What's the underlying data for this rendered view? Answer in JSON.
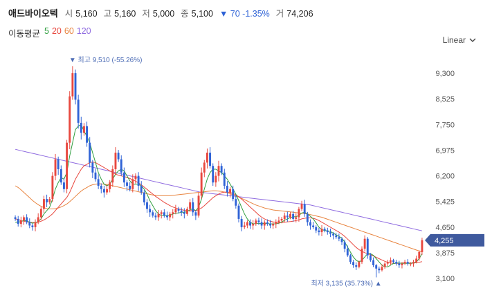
{
  "stock": {
    "name": "애드바이오텍",
    "open_label": "시",
    "open": "5,160",
    "high_label": "고",
    "high": "5,160",
    "low_label": "저",
    "low": "5,000",
    "close_label": "종",
    "close": "5,100",
    "change": "▼ 70 -1.35%",
    "volume_label": "거",
    "volume": "74,206"
  },
  "moving_average": {
    "label": "이동평균",
    "periods": [
      {
        "period": "5",
        "color": "#2e9e3e"
      },
      {
        "period": "20",
        "color": "#e8483f"
      },
      {
        "period": "60",
        "color": "#e8843f"
      },
      {
        "period": "120",
        "color": "#8f6be0"
      }
    ]
  },
  "scale_mode": {
    "label": "Linear"
  },
  "annotations": {
    "max_label": "▼ 최고 9,510 (-55.26%)",
    "min_label": "최저 3,135 (35.73%) ▲",
    "last_price_label": "4,255"
  },
  "colors": {
    "up": "#e8483f",
    "down": "#2f63d6",
    "badge": "#3f5a9e",
    "tick": "#555555"
  },
  "chart_data": {
    "type": "candlestick",
    "y_ticks": [
      "9,300",
      "8,525",
      "7,750",
      "6,975",
      "6,200",
      "5,425",
      "4,650",
      "3,875",
      "3,100"
    ],
    "y_tick_values": [
      9300,
      8525,
      7750,
      6975,
      6200,
      5425,
      4650,
      3875,
      3100
    ],
    "ylim": [
      2750,
      10050
    ],
    "max_price": 9510,
    "min_price": 3135,
    "last_price": 4255,
    "close_path": [
      4900,
      4750,
      4850,
      4950,
      4800,
      4700,
      4650,
      4800,
      4950,
      5200,
      5500,
      5400,
      5500,
      6200,
      6700,
      6400,
      6000,
      5800,
      7200,
      8600,
      9300,
      8500,
      7800,
      7500,
      7700,
      7200,
      6600,
      6300,
      6100,
      5900,
      5800,
      5700,
      5800,
      6000,
      6400,
      6900,
      6700,
      6300,
      6000,
      5900,
      5800,
      6100,
      6200,
      5900,
      5700,
      5400,
      5200,
      5100,
      5000,
      4950,
      5050,
      5100,
      5000,
      4950,
      5050,
      5100,
      5200,
      5150,
      5100,
      5050,
      5200,
      5400,
      5100,
      5000,
      5600,
      6300,
      6600,
      6900,
      6500,
      6000,
      6200,
      6500,
      6300,
      5900,
      5700,
      5800,
      5500,
      5300,
      4900,
      4650,
      4700,
      4800,
      4700,
      4750,
      4850,
      4800,
      4700,
      4800,
      4750,
      4700,
      4750,
      4800,
      4850,
      4900,
      5000,
      4950,
      5050,
      4900,
      4950,
      5200,
      5350,
      5050,
      4800,
      4700,
      4650,
      4550,
      4500,
      4600,
      4550,
      4500,
      4450,
      4400,
      4350,
      4300,
      4200,
      4000,
      3800,
      3600,
      3500,
      3450,
      3600,
      4000,
      4300,
      3800,
      3650,
      3500,
      3400,
      3350,
      3450,
      3550,
      3600,
      3650,
      3600,
      3550,
      3500,
      3550,
      3600,
      3550,
      3550,
      3600,
      3700,
      3900,
      4255
    ],
    "ma5": [
      4800,
      4800,
      4820,
      4850,
      4840,
      4800,
      4770,
      4790,
      4820,
      4900,
      5050,
      5150,
      5250,
      5500,
      5800,
      6000,
      6150,
      6100,
      6300,
      6800,
      7200,
      7600,
      7700,
      7750,
      7550,
      7400,
      7200,
      6900,
      6600,
      6300,
      6100,
      5950,
      5900,
      5950,
      6100,
      6250,
      6350,
      6400,
      6350,
      6200,
      6050,
      5950,
      5950,
      5950,
      5900,
      5800,
      5650,
      5450,
      5300,
      5150,
      5050,
      5000,
      5000,
      5000,
      5000,
      5050,
      5070,
      5080,
      5100,
      5100,
      5120,
      5180,
      5200,
      5150,
      5250,
      5500,
      5800,
      6100,
      6300,
      6400,
      6400,
      6350,
      6300,
      6200,
      6100,
      5950,
      5800,
      5650,
      5450,
      5250,
      5050,
      4900,
      4800,
      4750,
      4760,
      4760,
      4760,
      4760,
      4760,
      4750,
      4750,
      4750,
      4770,
      4800,
      4860,
      4900,
      4940,
      4960,
      4970,
      5000,
      5080,
      5100,
      5050,
      4980,
      4900,
      4780,
      4650,
      4580,
      4550,
      4540,
      4520,
      4470,
      4420,
      4370,
      4320,
      4200,
      4050,
      3900,
      3750,
      3650,
      3600,
      3650,
      3750,
      3850,
      3850,
      3800,
      3700,
      3600,
      3500,
      3450,
      3450,
      3500,
      3550,
      3570,
      3570,
      3560,
      3560,
      3560,
      3560,
      3570,
      3600,
      3700,
      3850
    ],
    "ma20": [
      4900,
      4880,
      4850,
      4830,
      4810,
      4800,
      4790,
      4790,
      4800,
      4830,
      4870,
      4920,
      4980,
      5050,
      5150,
      5250,
      5350,
      5450,
      5550,
      5700,
      5900,
      6100,
      6250,
      6400,
      6500,
      6550,
      6600,
      6620,
      6600,
      6550,
      6500,
      6450,
      6400,
      6350,
      6300,
      6250,
      6220,
      6200,
      6180,
      6150,
      6120,
      6080,
      6040,
      5990,
      5930,
      5860,
      5790,
      5720,
      5650,
      5580,
      5520,
      5460,
      5400,
      5350,
      5300,
      5260,
      5230,
      5200,
      5180,
      5160,
      5150,
      5150,
      5150,
      5150,
      5180,
      5230,
      5300,
      5380,
      5460,
      5540,
      5600,
      5650,
      5690,
      5710,
      5710,
      5700,
      5670,
      5630,
      5570,
      5500,
      5420,
      5340,
      5260,
      5180,
      5100,
      5020,
      4950,
      4900,
      4860,
      4830,
      4810,
      4800,
      4790,
      4790,
      4800,
      4810,
      4820,
      4830,
      4850,
      4870,
      4900,
      4920,
      4930,
      4930,
      4920,
      4890,
      4850,
      4800,
      4750,
      4700,
      4650,
      4600,
      4550,
      4500,
      4440,
      4370,
      4290,
      4210,
      4120,
      4040,
      3970,
      3920,
      3880,
      3850,
      3820,
      3780,
      3740,
      3700,
      3660,
      3620,
      3590,
      3570,
      3560,
      3560,
      3560,
      3570,
      3570,
      3570,
      3570,
      3570,
      3580,
      3590,
      3610
    ],
    "ma60": [
      5900,
      5850,
      5780,
      5700,
      5620,
      5540,
      5460,
      5390,
      5330,
      5280,
      5240,
      5210,
      5200,
      5200,
      5210,
      5230,
      5260,
      5300,
      5350,
      5420,
      5500,
      5580,
      5660,
      5740,
      5800,
      5850,
      5900,
      5930,
      5950,
      5960,
      5960,
      5950,
      5940,
      5920,
      5900,
      5880,
      5860,
      5840,
      5820,
      5800,
      5780,
      5760,
      5740,
      5720,
      5700,
      5680,
      5660,
      5640,
      5620,
      5610,
      5600,
      5600,
      5600,
      5600,
      5600,
      5610,
      5620,
      5630,
      5640,
      5650,
      5660,
      5670,
      5680,
      5690,
      5700,
      5710,
      5720,
      5730,
      5740,
      5750,
      5750,
      5740,
      5730,
      5710,
      5690,
      5660,
      5630,
      5600,
      5560,
      5520,
      5480,
      5440,
      5400,
      5360,
      5320,
      5290,
      5260,
      5230,
      5210,
      5190,
      5170,
      5160,
      5150,
      5140,
      5130,
      5120,
      5110,
      5100,
      5090,
      5080,
      5070,
      5060,
      5050,
      5030,
      5010,
      4990,
      4970,
      4950,
      4920,
      4890,
      4860,
      4830,
      4800,
      4770,
      4740,
      4710,
      4680,
      4650,
      4620,
      4590,
      4560,
      4530,
      4500,
      4470,
      4440,
      4410,
      4380,
      4350,
      4320,
      4290,
      4260,
      4230,
      4200,
      4170,
      4140,
      4110,
      4080,
      4050,
      4020,
      3990,
      3960,
      3930,
      3900
    ],
    "ma120": [
      7000,
      6980,
      6960,
      6940,
      6920,
      6900,
      6880,
      6860,
      6840,
      6820,
      6800,
      6780,
      6760,
      6740,
      6720,
      6700,
      6680,
      6660,
      6640,
      6620,
      6600,
      6580,
      6560,
      6540,
      6520,
      6500,
      6480,
      6460,
      6440,
      6420,
      6400,
      6380,
      6360,
      6340,
      6320,
      6300,
      6280,
      6260,
      6240,
      6220,
      6200,
      6180,
      6160,
      6140,
      6120,
      6100,
      6080,
      6060,
      6040,
      6020,
      6000,
      5980,
      5960,
      5940,
      5920,
      5900,
      5880,
      5860,
      5840,
      5820,
      5800,
      5780,
      5760,
      5740,
      5720,
      5700,
      5690,
      5680,
      5670,
      5660,
      5650,
      5640,
      5630,
      5620,
      5610,
      5600,
      5590,
      5580,
      5570,
      5560,
      5550,
      5540,
      5530,
      5520,
      5510,
      5500,
      5490,
      5480,
      5470,
      5460,
      5450,
      5440,
      5430,
      5420,
      5410,
      5400,
      5390,
      5380,
      5370,
      5360,
      5350,
      5340,
      5330,
      5320,
      5300,
      5280,
      5260,
      5240,
      5220,
      5200,
      5180,
      5160,
      5140,
      5120,
      5100,
      5080,
      5060,
      5040,
      5020,
      5000,
      4980,
      4960,
      4940,
      4920,
      4900,
      4880,
      4860,
      4840,
      4820,
      4800,
      4780,
      4760,
      4740,
      4720,
      4700,
      4680,
      4660,
      4640,
      4620,
      4600,
      4580,
      4560,
      4540
    ]
  }
}
